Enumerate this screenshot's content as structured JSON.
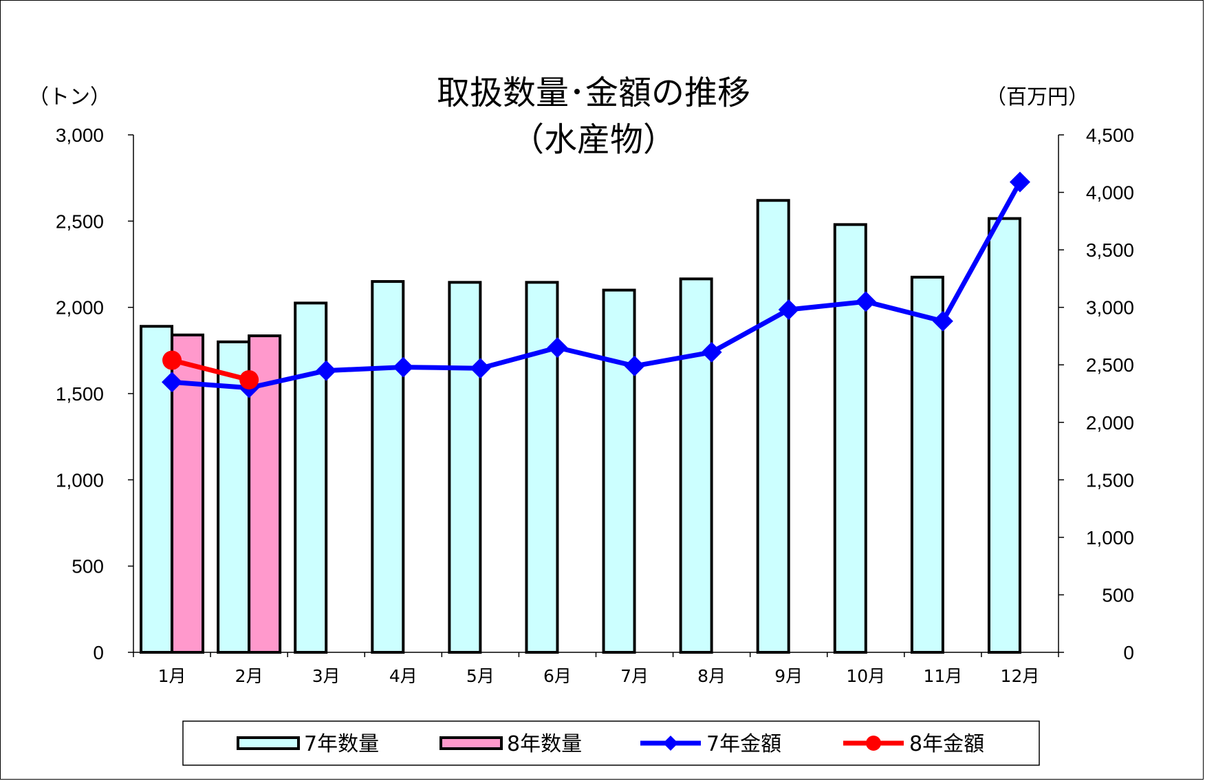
{
  "chart_data": {
    "type": "bar",
    "title": "取扱数量･金額の推移",
    "subtitle": "（水産物）",
    "left_axis_unit": "（トン）",
    "right_axis_unit": "（百万円）",
    "categories": [
      "1月",
      "2月",
      "3月",
      "4月",
      "5月",
      "6月",
      "7月",
      "8月",
      "9月",
      "10月",
      "11月",
      "12月"
    ],
    "ylim_left": [
      0,
      3000
    ],
    "ylim_right": [
      0,
      4500
    ],
    "yticks_left": [
      "0",
      "500",
      "1,000",
      "1,500",
      "2,000",
      "2,500",
      "3,000"
    ],
    "yticks_right": [
      "0",
      "500",
      "1,000",
      "1,500",
      "2,000",
      "2,500",
      "3,000",
      "3,500",
      "4,000",
      "4,500"
    ],
    "grid": false,
    "legend_position": "bottom",
    "series": [
      {
        "name": "7年数量",
        "kind": "bar",
        "axis": "left",
        "color": "#CCFFFF",
        "values": [
          1890,
          1800,
          2025,
          2150,
          2145,
          2145,
          2100,
          2165,
          2620,
          2480,
          2175,
          2515
        ]
      },
      {
        "name": "8年数量",
        "kind": "bar",
        "axis": "left",
        "color": "#FF99CC",
        "values": [
          1840,
          1835,
          null,
          null,
          null,
          null,
          null,
          null,
          null,
          null,
          null,
          null
        ]
      },
      {
        "name": "7年金額",
        "kind": "line",
        "axis": "right",
        "color": "#0000FF",
        "marker": "diamond",
        "values": [
          2350,
          2300,
          2450,
          2480,
          2470,
          2650,
          2490,
          2610,
          2980,
          3050,
          2880,
          4090
        ]
      },
      {
        "name": "8年金額",
        "kind": "line",
        "axis": "right",
        "color": "#FF0000",
        "marker": "circle",
        "values": [
          2540,
          2370,
          null,
          null,
          null,
          null,
          null,
          null,
          null,
          null,
          null,
          null
        ]
      }
    ]
  }
}
